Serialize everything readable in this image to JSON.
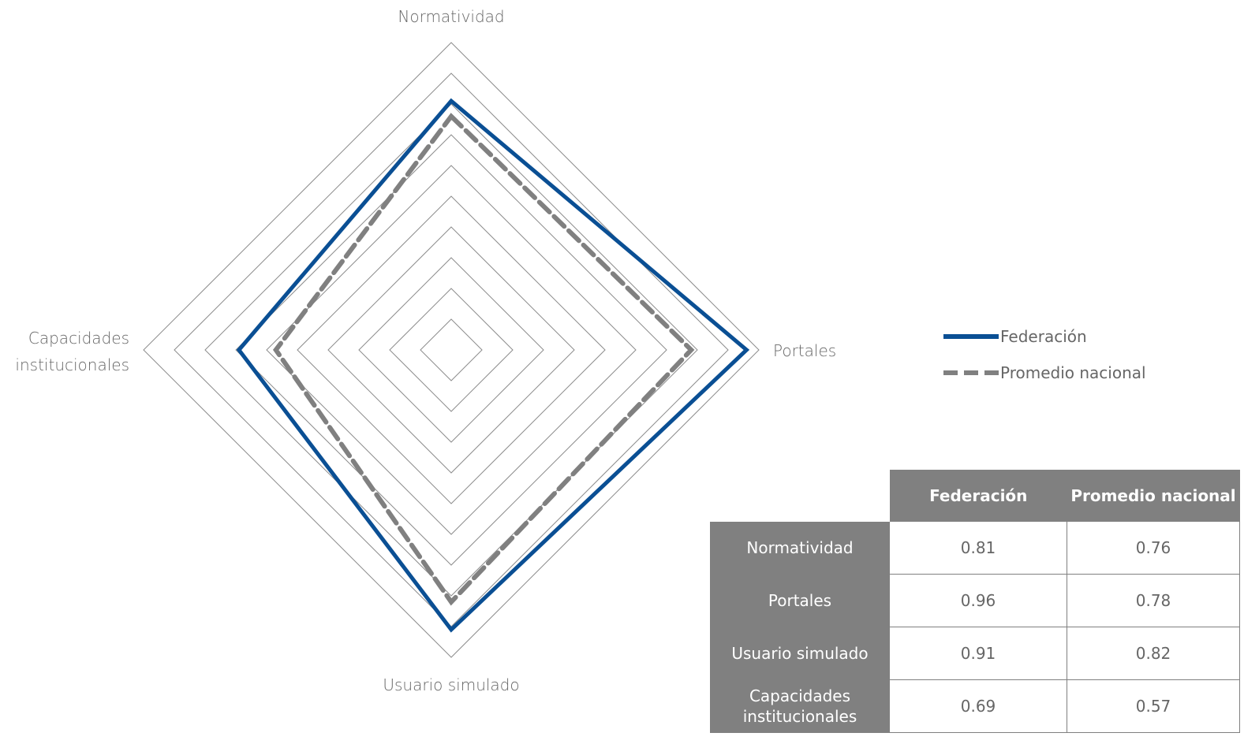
{
  "chart_data": {
    "type": "radar",
    "axes": [
      "Normatividad",
      "Portales",
      "Usuario simulado",
      "Capacidades institucionales"
    ],
    "rlim": [
      0,
      1
    ],
    "grid_steps": 10,
    "series": [
      {
        "name": "Federación",
        "values": [
          0.81,
          0.96,
          0.91,
          0.69
        ],
        "color": "#0a4f94",
        "style": "solid"
      },
      {
        "name": "Promedio nacional",
        "values": [
          0.76,
          0.78,
          0.82,
          0.57
        ],
        "color": "#808080",
        "style": "dashed"
      }
    ],
    "legend_position": "right"
  },
  "axis_labels": {
    "top": "Normatividad",
    "right": "Portales",
    "bottom": "Usuario simulado",
    "left_line1": "Capacidades",
    "left_line2": "institucionales"
  },
  "legend": {
    "federacion": "Federación",
    "promedio": "Promedio nacional"
  },
  "table": {
    "headers": [
      "Federación",
      "Promedio nacional"
    ],
    "rows": [
      {
        "label": "Normatividad",
        "federacion": "0.81",
        "promedio": "0.76"
      },
      {
        "label": "Portales",
        "federacion": "0.96",
        "promedio": "0.78"
      },
      {
        "label": "Usuario simulado",
        "federacion": "0.91",
        "promedio": "0.82"
      },
      {
        "label_line1": "Capacidades",
        "label_line2": "institucionales",
        "federacion": "0.69",
        "promedio": "0.57"
      }
    ]
  }
}
